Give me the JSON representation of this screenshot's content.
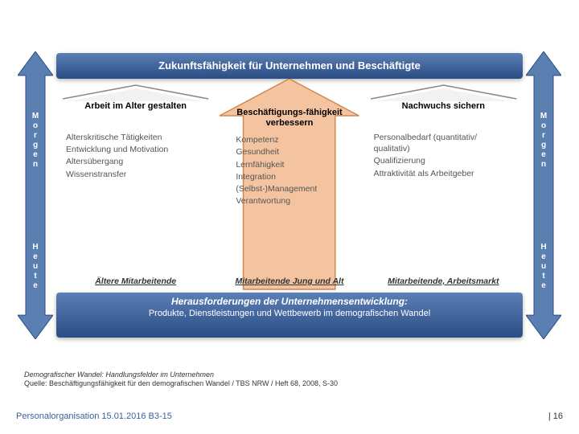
{
  "colors": {
    "bar_grad_top": "#5b7fb5",
    "bar_grad_bottom": "#2a4e84",
    "side_arrow_fill": "#5a7fb0",
    "side_arrow_stroke": "#2a4e84",
    "center_arrow_fill": "#f4c4a0",
    "center_arrow_stroke": "#d08850",
    "roof_stroke": "#888888",
    "text_body": "#555555",
    "footer_link": "#3a5fa0"
  },
  "top_bar": "Zukunftsfähigkeit für Unternehmen und Beschäftigte",
  "bottom_bar": {
    "line1": "Herausforderungen der Unternehmensentwicklung:",
    "line2": "Produkte, Dienstleistungen und Wettbewerb im demografischen Wandel"
  },
  "side": {
    "top_word": "Morgen",
    "bottom_word": "Heute"
  },
  "columns": {
    "left": {
      "header": "Arbeit im Alter gestalten",
      "items": [
        "Alterskritische Tätigkeiten",
        "Entwicklung und Motivation",
        "Altersübergang",
        "Wissenstransfer"
      ],
      "footer": "Ältere Mitarbeitende"
    },
    "center": {
      "header": "Beschäftigungs-fähigkeit verbessern",
      "items": [
        "Kompetenz",
        "Gesundheit",
        "Lernfähigkeit",
        "Integration",
        "(Selbst-)Management",
        "Verantwortung"
      ],
      "footer": "Mitarbeitende Jung und Alt"
    },
    "right": {
      "header": "Nachwuchs sichern",
      "items": [
        "Personalbedarf (quantitativ/ qualitativ)",
        "Qualifizierung",
        "Attraktivität als Arbeitgeber"
      ],
      "footer": "Mitarbeitende, Arbeitsmarkt"
    }
  },
  "caption": {
    "line1": "Demografischer Wandel: Handlungsfelder im Unternehmen",
    "line2": "Quelle: Beschäftigungsfähigkeit für den demografischen Wandel / TBS NRW / Heft 68, 2008, S-30"
  },
  "footer": {
    "left": "Personalorganisation 15.01.2016 B3-15",
    "right": "| 16"
  }
}
